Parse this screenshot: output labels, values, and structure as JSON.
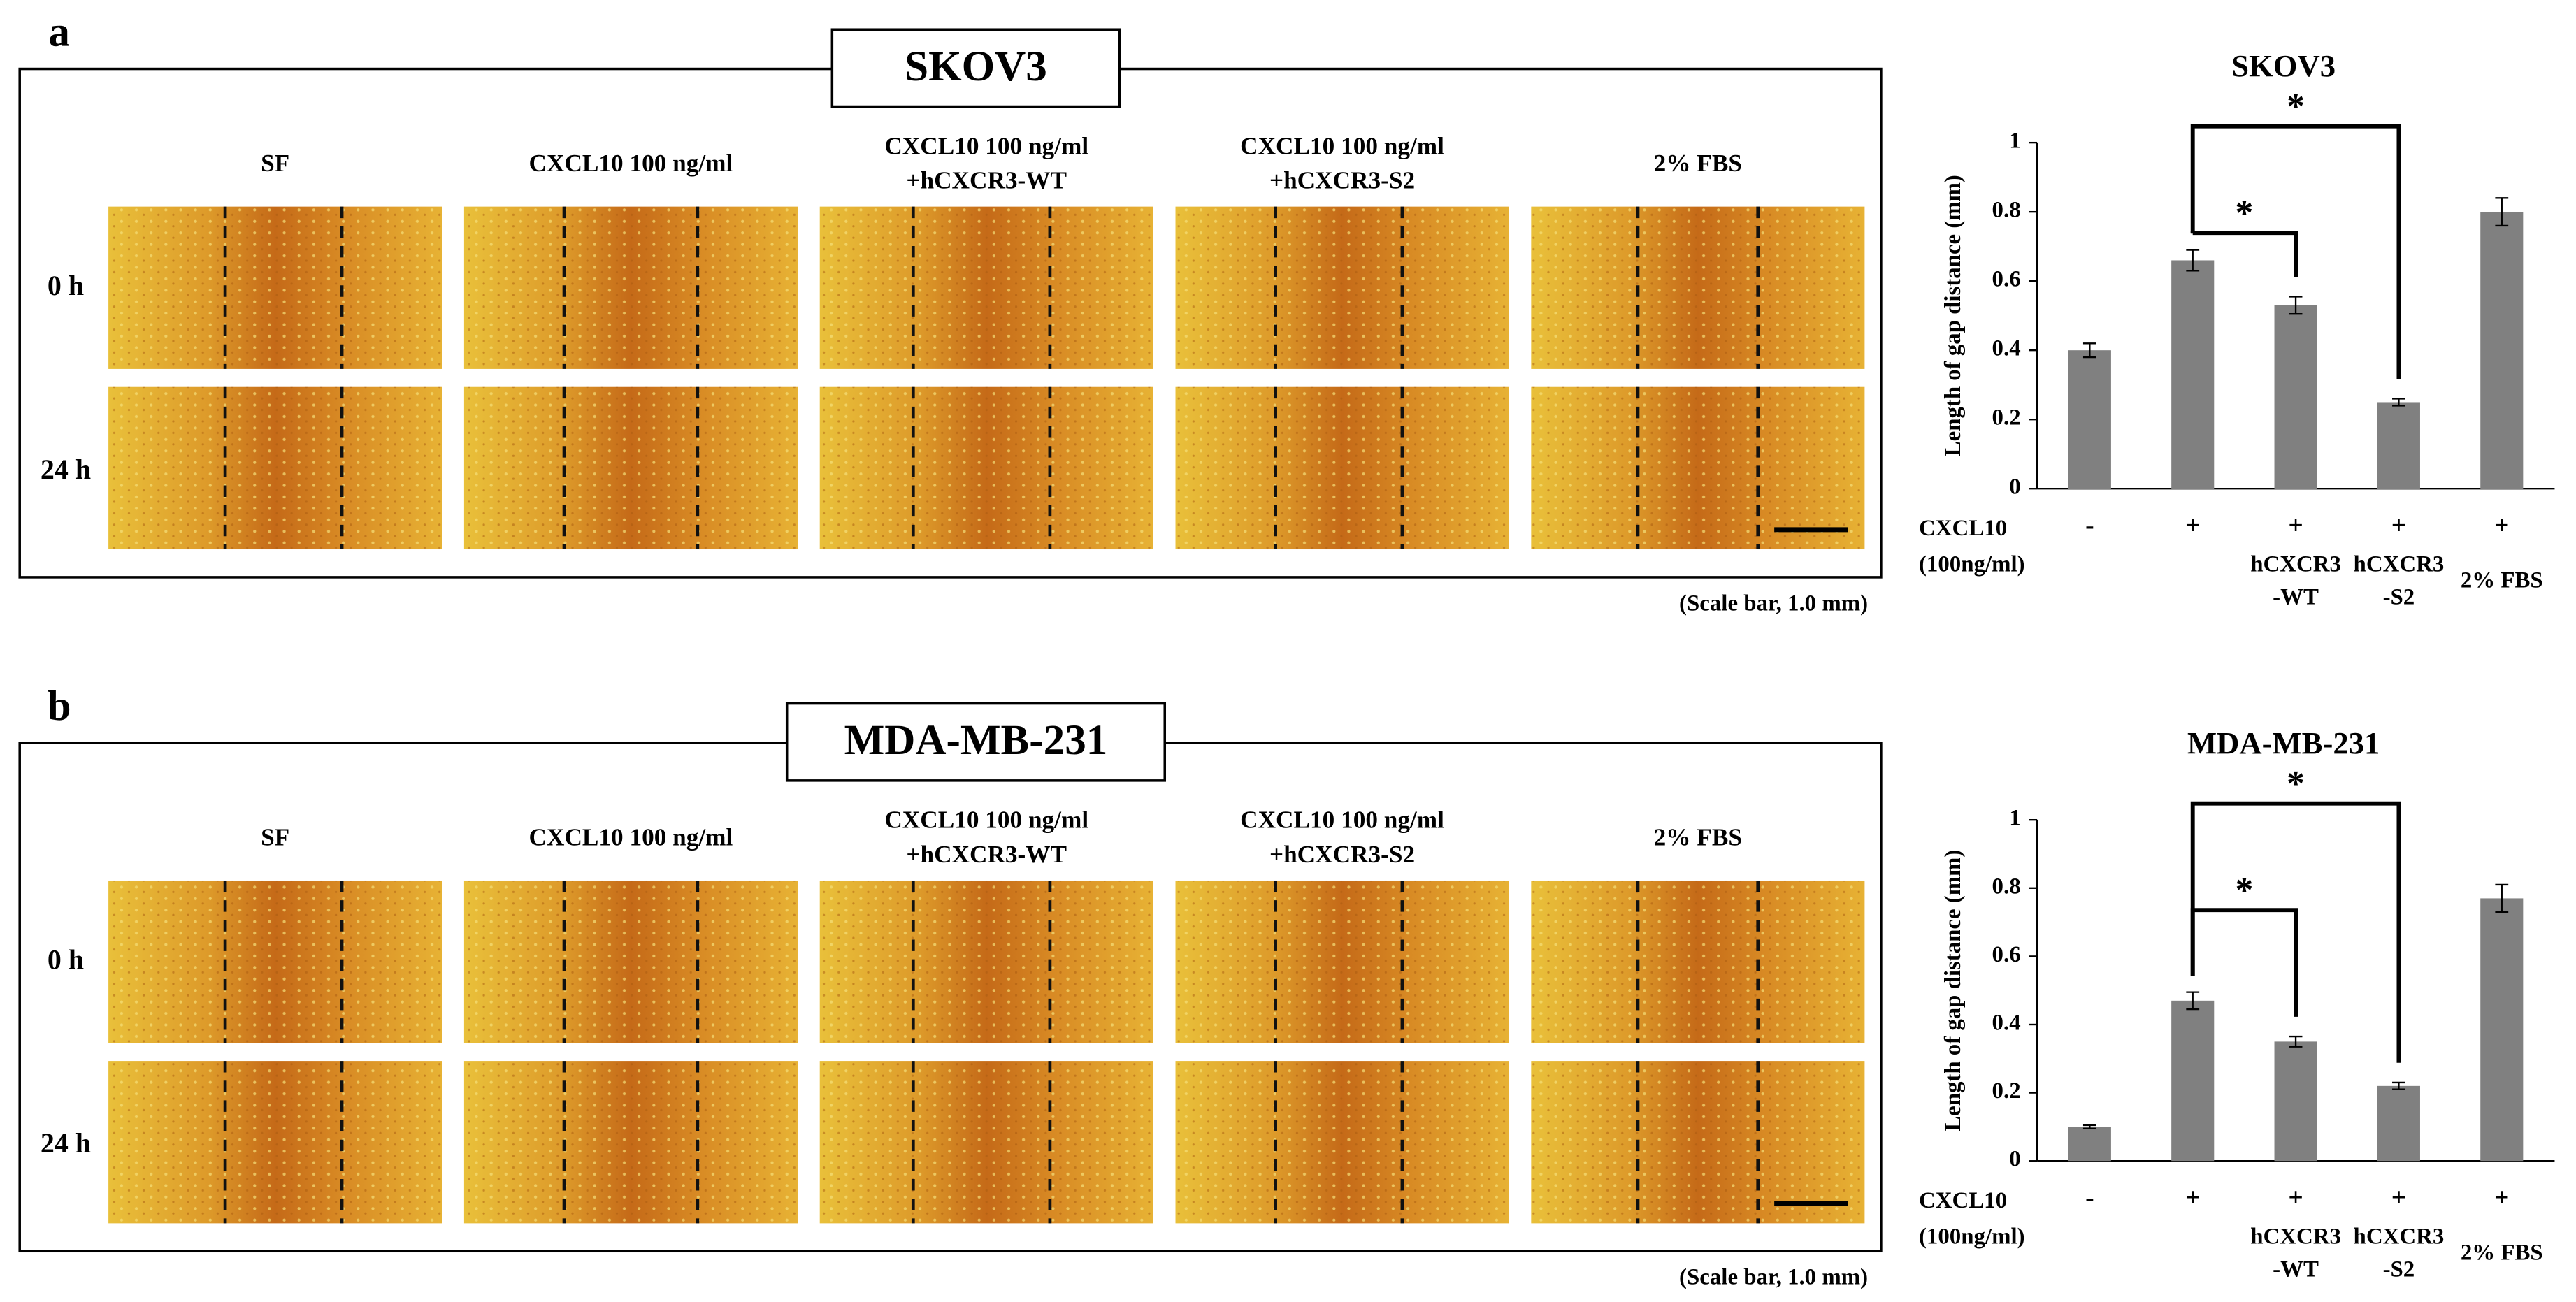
{
  "panels": [
    {
      "label": "a",
      "title": "SKOV3",
      "columns": [
        "SF",
        "CXCL10 100 ng/ml",
        "CXCL10 100 ng/ml\n+hCXCR3-WT",
        "CXCL10 100 ng/ml\n+hCXCR3-S2",
        "2% FBS"
      ],
      "rows": [
        "0 h",
        "24 h"
      ],
      "scale_note": "(Scale bar, 1.0 mm)"
    },
    {
      "label": "b",
      "title": "MDA-MB-231",
      "columns": [
        "SF",
        "CXCL10 100 ng/ml",
        "CXCL10 100 ng/ml\n+hCXCR3-WT",
        "CXCL10 100 ng/ml\n+hCXCR3-S2",
        "2% FBS"
      ],
      "rows": [
        "0 h",
        "24 h"
      ],
      "scale_note": "(Scale bar, 1.0 mm)"
    }
  ],
  "chart_data": [
    {
      "type": "bar",
      "title": "SKOV3",
      "ylabel": "Length of gap distance (mm)",
      "color": "#808080",
      "categories": [
        null,
        null,
        "hCXCR3\n-WT",
        "hCXCR3\n-S2",
        "2% FBS"
      ],
      "x_row": {
        "label": "CXCL10\n(100ng/ml)",
        "values": [
          "-",
          "+",
          "+",
          "+",
          "+"
        ]
      },
      "values": [
        0.4,
        0.66,
        0.53,
        0.25,
        0.8
      ],
      "errors": [
        0.02,
        0.03,
        0.025,
        0.01,
        0.04
      ],
      "ylim": [
        0,
        1
      ],
      "yticks": [
        0,
        0.2,
        0.4,
        0.6,
        0.8,
        1
      ],
      "significance": [
        {
          "from": 1,
          "to": 2,
          "label": "*"
        },
        {
          "from": 1,
          "to": 3,
          "label": "*"
        }
      ]
    },
    {
      "type": "bar",
      "title": "MDA-MB-231",
      "ylabel": "Length of gap distance (mm)",
      "color": "#808080",
      "categories": [
        null,
        null,
        "hCXCR3\n-WT",
        "hCXCR3\n-S2",
        "2% FBS"
      ],
      "x_row": {
        "label": "CXCL10\n(100ng/ml)",
        "values": [
          "-",
          "+",
          "+",
          "+",
          "+"
        ]
      },
      "values": [
        0.1,
        0.47,
        0.35,
        0.22,
        0.77
      ],
      "errors": [
        0.005,
        0.025,
        0.015,
        0.01,
        0.04
      ],
      "ylim": [
        0,
        1
      ],
      "yticks": [
        0,
        0.2,
        0.4,
        0.6,
        0.8,
        1
      ],
      "significance": [
        {
          "from": 1,
          "to": 2,
          "label": "*"
        },
        {
          "from": 1,
          "to": 3,
          "label": "*"
        }
      ]
    }
  ]
}
